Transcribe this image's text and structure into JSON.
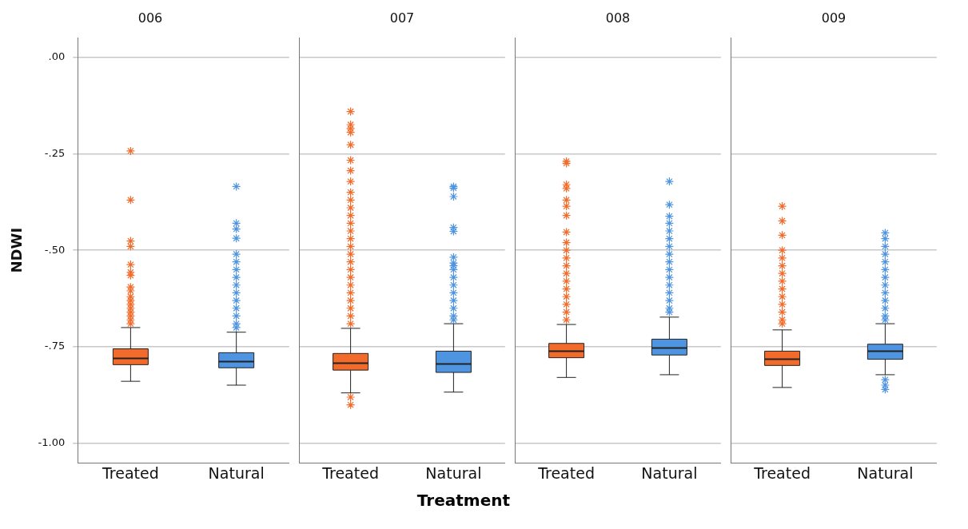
{
  "chart_data": [
    {
      "type": "box",
      "title": "006",
      "ylabel": "NDWI",
      "categories": [
        "Treated",
        "Natural"
      ],
      "colors": [
        "#f26b2a",
        "#4f94e0"
      ],
      "marker": "star",
      "grid": "y",
      "ylim": [
        -1.05,
        0.05
      ],
      "yticks": [
        {
          "value": 0,
          "label": ".00"
        },
        {
          "value": -0.25,
          "label": "-.25"
        },
        {
          "value": -0.5,
          "label": "-.50"
        },
        {
          "value": -0.75,
          "label": "-.75"
        },
        {
          "value": -1,
          "label": "-1.00"
        }
      ],
      "boxes": [
        {
          "low": -0.839,
          "q1": -0.796,
          "median": -0.78,
          "q3": -0.755,
          "high": -0.7,
          "outliers": [
            -0.243,
            -0.37,
            -0.476,
            -0.49,
            -0.537,
            -0.557,
            -0.565,
            -0.595,
            -0.605,
            -0.62,
            -0.63,
            -0.64,
            -0.65,
            -0.66,
            -0.67,
            -0.68,
            -0.69
          ]
        },
        {
          "low": -0.849,
          "q1": -0.804,
          "median": -0.788,
          "q3": -0.765,
          "high": -0.712,
          "outliers": [
            -0.335,
            -0.43,
            -0.445,
            -0.469,
            -0.51,
            -0.53,
            -0.55,
            -0.57,
            -0.59,
            -0.61,
            -0.63,
            -0.65,
            -0.67,
            -0.69,
            -0.7
          ]
        }
      ]
    },
    {
      "type": "box",
      "title": "007",
      "xlabel": "Treatment",
      "categories": [
        "Treated",
        "Natural"
      ],
      "colors": [
        "#f26b2a",
        "#4f94e0"
      ],
      "marker": "star",
      "grid": "y",
      "tick_labels": "x",
      "ylim": [
        -1.05,
        0.05
      ],
      "yticks": [
        {
          "value": 0,
          "label": null
        },
        {
          "value": -0.25,
          "label": null
        },
        {
          "value": -0.5,
          "label": null
        },
        {
          "value": -0.75,
          "label": null
        },
        {
          "value": -1,
          "label": null
        }
      ],
      "boxes": [
        {
          "low": -0.869,
          "q1": -0.81,
          "median": -0.792,
          "q3": -0.767,
          "high": -0.702,
          "outliers": [
            -0.88,
            -0.9,
            -0.141,
            -0.175,
            -0.185,
            -0.195,
            -0.227,
            -0.267,
            -0.294,
            -0.322,
            -0.35,
            -0.37,
            -0.39,
            -0.41,
            -0.43,
            -0.45,
            -0.47,
            -0.49,
            -0.51,
            -0.53,
            -0.55,
            -0.57,
            -0.59,
            -0.61,
            -0.63,
            -0.65,
            -0.67,
            -0.69
          ]
        },
        {
          "low": -0.867,
          "q1": -0.816,
          "median": -0.794,
          "q3": -0.761,
          "high": -0.69,
          "outliers": [
            -0.335,
            -0.339,
            -0.361,
            -0.441,
            -0.451,
            -0.518,
            -0.533,
            -0.54,
            -0.55,
            -0.57,
            -0.59,
            -0.61,
            -0.63,
            -0.65,
            -0.67,
            -0.68
          ]
        }
      ]
    },
    {
      "type": "box",
      "title": "008",
      "categories": [
        "Treated",
        "Natural"
      ],
      "colors": [
        "#f26b2a",
        "#4f94e0"
      ],
      "marker": "star",
      "grid": "y",
      "tick_labels": "x",
      "ylim": [
        -1.05,
        0.05
      ],
      "yticks": [
        {
          "value": 0,
          "label": null
        },
        {
          "value": -0.25,
          "label": null
        },
        {
          "value": -0.5,
          "label": null
        },
        {
          "value": -0.75,
          "label": null
        },
        {
          "value": -1,
          "label": null
        }
      ],
      "boxes": [
        {
          "low": -0.829,
          "q1": -0.778,
          "median": -0.761,
          "q3": -0.741,
          "high": -0.692,
          "outliers": [
            -0.27,
            -0.275,
            -0.33,
            -0.34,
            -0.37,
            -0.386,
            -0.41,
            -0.453,
            -0.48,
            -0.5,
            -0.52,
            -0.54,
            -0.56,
            -0.58,
            -0.6,
            -0.62,
            -0.64,
            -0.66,
            -0.68
          ]
        },
        {
          "low": -0.822,
          "q1": -0.771,
          "median": -0.753,
          "q3": -0.73,
          "high": -0.673,
          "outliers": [
            -0.322,
            -0.382,
            -0.412,
            -0.43,
            -0.45,
            -0.47,
            -0.49,
            -0.51,
            -0.53,
            -0.55,
            -0.57,
            -0.59,
            -0.61,
            -0.63,
            -0.65,
            -0.66
          ]
        }
      ]
    },
    {
      "type": "box",
      "title": "009",
      "categories": [
        "Treated",
        "Natural"
      ],
      "colors": [
        "#f26b2a",
        "#4f94e0"
      ],
      "marker": "star",
      "grid": "y",
      "tick_labels": "x",
      "ylim": [
        -1.05,
        0.05
      ],
      "yticks": [
        {
          "value": 0,
          "label": null
        },
        {
          "value": -0.25,
          "label": null
        },
        {
          "value": -0.5,
          "label": null
        },
        {
          "value": -0.75,
          "label": null
        },
        {
          "value": -1,
          "label": null
        }
      ],
      "boxes": [
        {
          "low": -0.855,
          "q1": -0.798,
          "median": -0.782,
          "q3": -0.761,
          "high": -0.706,
          "outliers": [
            -0.386,
            -0.424,
            -0.461,
            -0.5,
            -0.52,
            -0.54,
            -0.56,
            -0.58,
            -0.6,
            -0.62,
            -0.64,
            -0.66,
            -0.68,
            -0.69
          ]
        },
        {
          "low": -0.822,
          "q1": -0.782,
          "median": -0.761,
          "q3": -0.743,
          "high": -0.69,
          "outliers": [
            -0.835,
            -0.849,
            -0.86,
            -0.455,
            -0.47,
            -0.49,
            -0.51,
            -0.53,
            -0.55,
            -0.57,
            -0.59,
            -0.61,
            -0.63,
            -0.65,
            -0.67,
            -0.68
          ]
        }
      ]
    }
  ]
}
